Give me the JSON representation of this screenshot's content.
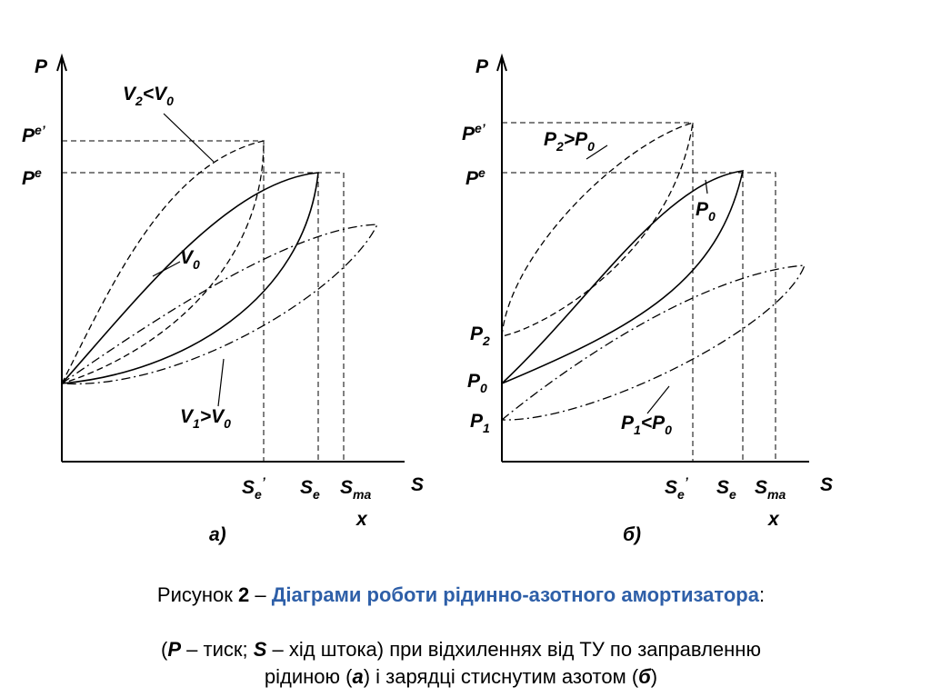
{
  "figure_a": {
    "axis_p": "P",
    "axis_s": "S",
    "p_e_prime": [
      "P",
      "e’"
    ],
    "p_e": [
      "P",
      "e"
    ],
    "curve_v2": [
      "V",
      "2",
      "<V",
      "0"
    ],
    "curve_v0": [
      "V",
      "0"
    ],
    "curve_v1": [
      "V",
      "1",
      ">V",
      "0"
    ],
    "s_e_prime": [
      "S",
      "e",
      "’"
    ],
    "s_e": [
      "S",
      "e"
    ],
    "s_max": [
      "S",
      "ma"
    ],
    "s_max_tail": "x",
    "label": "а)"
  },
  "figure_b": {
    "axis_p": "P",
    "axis_s": "S",
    "p_e_prime": [
      "P",
      "e’"
    ],
    "p_e": [
      "P",
      "e"
    ],
    "curve_p2": [
      "P",
      "2",
      ">P",
      "0"
    ],
    "curve_p0": [
      "P",
      "0"
    ],
    "curve_p1": [
      "P",
      "1",
      "<P",
      "0"
    ],
    "p2": [
      "P",
      "2"
    ],
    "p0": [
      "P",
      "0"
    ],
    "p1": [
      "P",
      "1"
    ],
    "s_e_prime": [
      "S",
      "e",
      "’"
    ],
    "s_e": [
      "S",
      "e"
    ],
    "s_max": [
      "S",
      "ma"
    ],
    "s_max_tail": "x",
    "label": "б)"
  },
  "caption": {
    "line1": [
      "Рисунок ",
      "2",
      " – ",
      "Діаграми роботи рідинно-азотного амортизатора",
      ":"
    ],
    "line2": [
      "(",
      "P",
      " – тиск; ",
      "S",
      " – хід штока)  при відхиленнях від ТУ по заправленню"
    ],
    "line3": [
      "рідиною (",
      "а",
      ") і зарядці стиснутим азотом (",
      "б",
      ")"
    ]
  }
}
